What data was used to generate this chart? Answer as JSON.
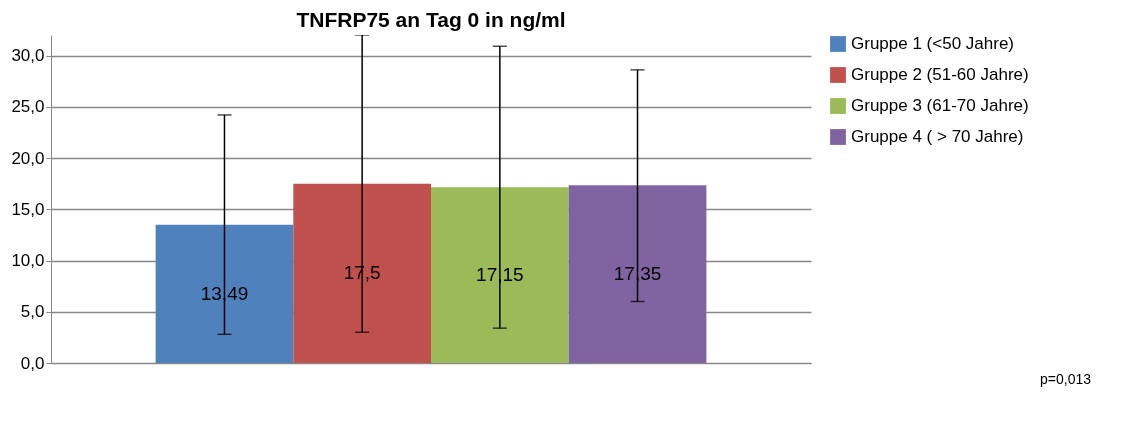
{
  "chart_data": {
    "type": "bar",
    "title": "TNFRP75 an Tag 0 in ng/ml",
    "categories": [
      null
    ],
    "series": [
      {
        "name": "Gruppe 1  (<50 Jahre)",
        "color": "#4f81bd",
        "values": [
          13.49
        ],
        "value_labels": [
          "13,49"
        ],
        "errors": [
          [
            2.8,
            24.2
          ]
        ]
      },
      {
        "name": "Gruppe 2 (51-60 Jahre)",
        "color": "#c0504d",
        "values": [
          17.5
        ],
        "value_labels": [
          "17,5"
        ],
        "errors": [
          [
            3.0,
            32.0
          ]
        ]
      },
      {
        "name": "Gruppe 3 (61-70 Jahre)",
        "color": "#9bbb59",
        "values": [
          17.15
        ],
        "value_labels": [
          "17,15"
        ],
        "errors": [
          [
            3.4,
            30.9
          ]
        ]
      },
      {
        "name": "Gruppe 4 ( > 70 Jahre)",
        "color": "#8064a2",
        "values": [
          17.35
        ],
        "value_labels": [
          "17,35"
        ],
        "errors": [
          [
            6.0,
            28.6
          ]
        ]
      }
    ],
    "ylim": [
      0,
      32
    ],
    "yticks": [
      {
        "value": 0,
        "label": "0,0"
      },
      {
        "value": 5,
        "label": "5,0"
      },
      {
        "value": 10,
        "label": "10,0"
      },
      {
        "value": 15,
        "label": "15,0"
      },
      {
        "value": 20,
        "label": "20,0"
      },
      {
        "value": 25,
        "label": "25,0"
      },
      {
        "value": 30,
        "label": "30,0"
      }
    ],
    "grid": "y",
    "legend": "right",
    "annotations": [
      "p=0,013"
    ]
  }
}
